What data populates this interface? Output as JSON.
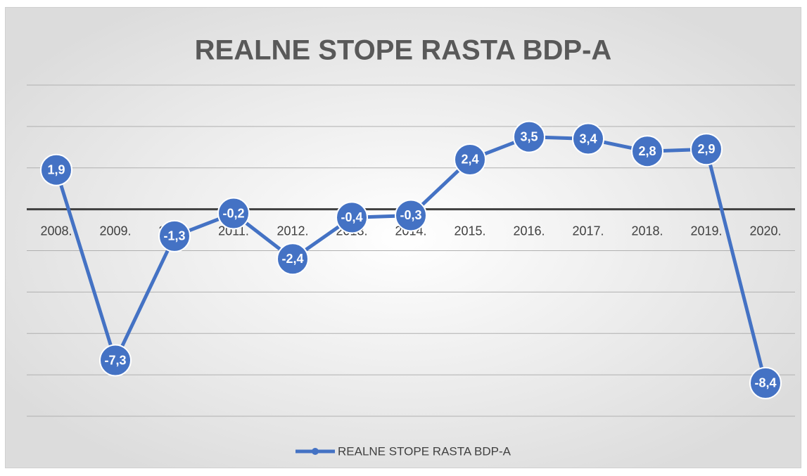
{
  "chart_data": {
    "type": "line",
    "title": "REALNE STOPE RASTA BDP-A",
    "categories": [
      "2008.",
      "2009.",
      "2010.",
      "2011.",
      "2012.",
      "2013.",
      "2014.",
      "2015.",
      "2016.",
      "2017.",
      "2018.",
      "2019.",
      "2020."
    ],
    "series": [
      {
        "name": "REALNE STOPE RASTA BDP-A",
        "color": "#4472c4",
        "values": [
          1.9,
          -7.3,
          -1.3,
          -0.2,
          -2.4,
          -0.4,
          -0.3,
          2.4,
          3.5,
          3.4,
          2.8,
          2.9,
          -8.4
        ],
        "value_labels": [
          "1,9",
          "-7,3",
          "-1,3",
          "-0,2",
          "-2,4",
          "-0,4",
          "-0,3",
          "2,4",
          "3,5",
          "3,4",
          "2,8",
          "2,9",
          "-8,4"
        ]
      }
    ],
    "ylim": [
      -10,
      6
    ],
    "yticks": [
      -10,
      -8,
      -6,
      -4,
      -2,
      0,
      2,
      4,
      6
    ],
    "grid": true,
    "legend": "bottom"
  }
}
